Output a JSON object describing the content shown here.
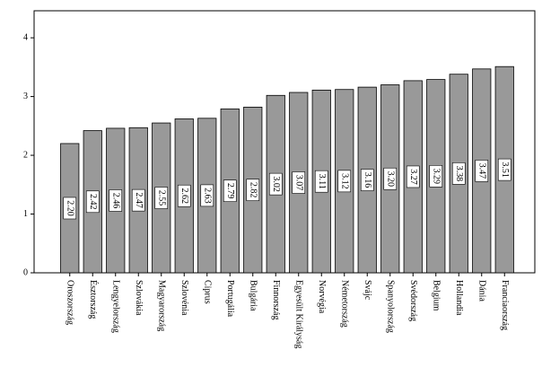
{
  "chart_data": {
    "type": "bar",
    "categories": [
      "Oroszország",
      "Észtország",
      "Lengyelország",
      "Szlovákia",
      "Magyarország",
      "Szlovénia",
      "Ciprus",
      "Portugália",
      "Bulgária",
      "Finnország",
      "Egyesült Királyság",
      "Norvégia",
      "Németország",
      "Svájc",
      "Spanyolország",
      "Svédország",
      "Belgium",
      "Hollandia",
      "Dánia",
      "Franciaország"
    ],
    "values": [
      2.2,
      2.42,
      2.46,
      2.47,
      2.55,
      2.62,
      2.63,
      2.79,
      2.82,
      3.02,
      3.07,
      3.11,
      3.12,
      3.16,
      3.2,
      3.27,
      3.29,
      3.38,
      3.47,
      3.51
    ],
    "value_labels": [
      "2.20",
      "2.42",
      "2.46",
      "2.47",
      "2.55",
      "2.62",
      "2.63",
      "2.79",
      "2.82",
      "3.02",
      "3.07",
      "3.11",
      "3.12",
      "3.16",
      "3.20",
      "3.27",
      "3.29",
      "3.38",
      "3.47",
      "3.51"
    ],
    "color": "#999999",
    "ylim": [
      0,
      4.46
    ],
    "yticks": [
      0,
      1,
      2,
      3,
      4
    ],
    "grid": false
  }
}
